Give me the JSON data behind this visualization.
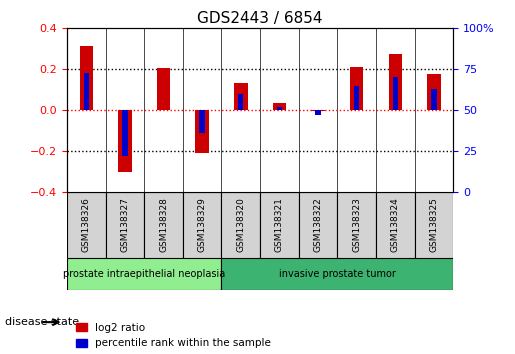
{
  "title": "GDS2443 / 6854",
  "samples": [
    "GSM138326",
    "GSM138327",
    "GSM138328",
    "GSM138329",
    "GSM138320",
    "GSM138321",
    "GSM138322",
    "GSM138323",
    "GSM138324",
    "GSM138325"
  ],
  "log2_ratio": [
    0.315,
    -0.3,
    0.205,
    -0.21,
    0.135,
    0.035,
    -0.005,
    0.21,
    0.275,
    0.175
  ],
  "percentile_rank": [
    73,
    22,
    50,
    36,
    60,
    52,
    47,
    65,
    70,
    63
  ],
  "ylim_left": [
    -0.4,
    0.4
  ],
  "ylim_right": [
    0,
    100
  ],
  "yticks_left": [
    -0.4,
    -0.2,
    0.0,
    0.2,
    0.4
  ],
  "yticks_right": [
    0,
    25,
    50,
    75,
    100
  ],
  "groups": [
    {
      "label": "prostate intraepithelial neoplasia",
      "start": 0,
      "end": 4,
      "color": "#90ee90"
    },
    {
      "label": "invasive prostate tumor",
      "start": 4,
      "end": 10,
      "color": "#3cb371"
    }
  ],
  "group_label": "disease state",
  "bar_color_red": "#cc0000",
  "bar_color_blue": "#0000cc",
  "bar_width": 0.35,
  "legend_red": "log2 ratio",
  "legend_blue": "percentile rank within the sample",
  "background_color": "#ffffff",
  "plot_bg": "#ffffff",
  "grid_color": "#000000",
  "dotted_lines": [
    -0.2,
    0.0,
    0.2
  ],
  "zero_line_color": "#ff0000"
}
